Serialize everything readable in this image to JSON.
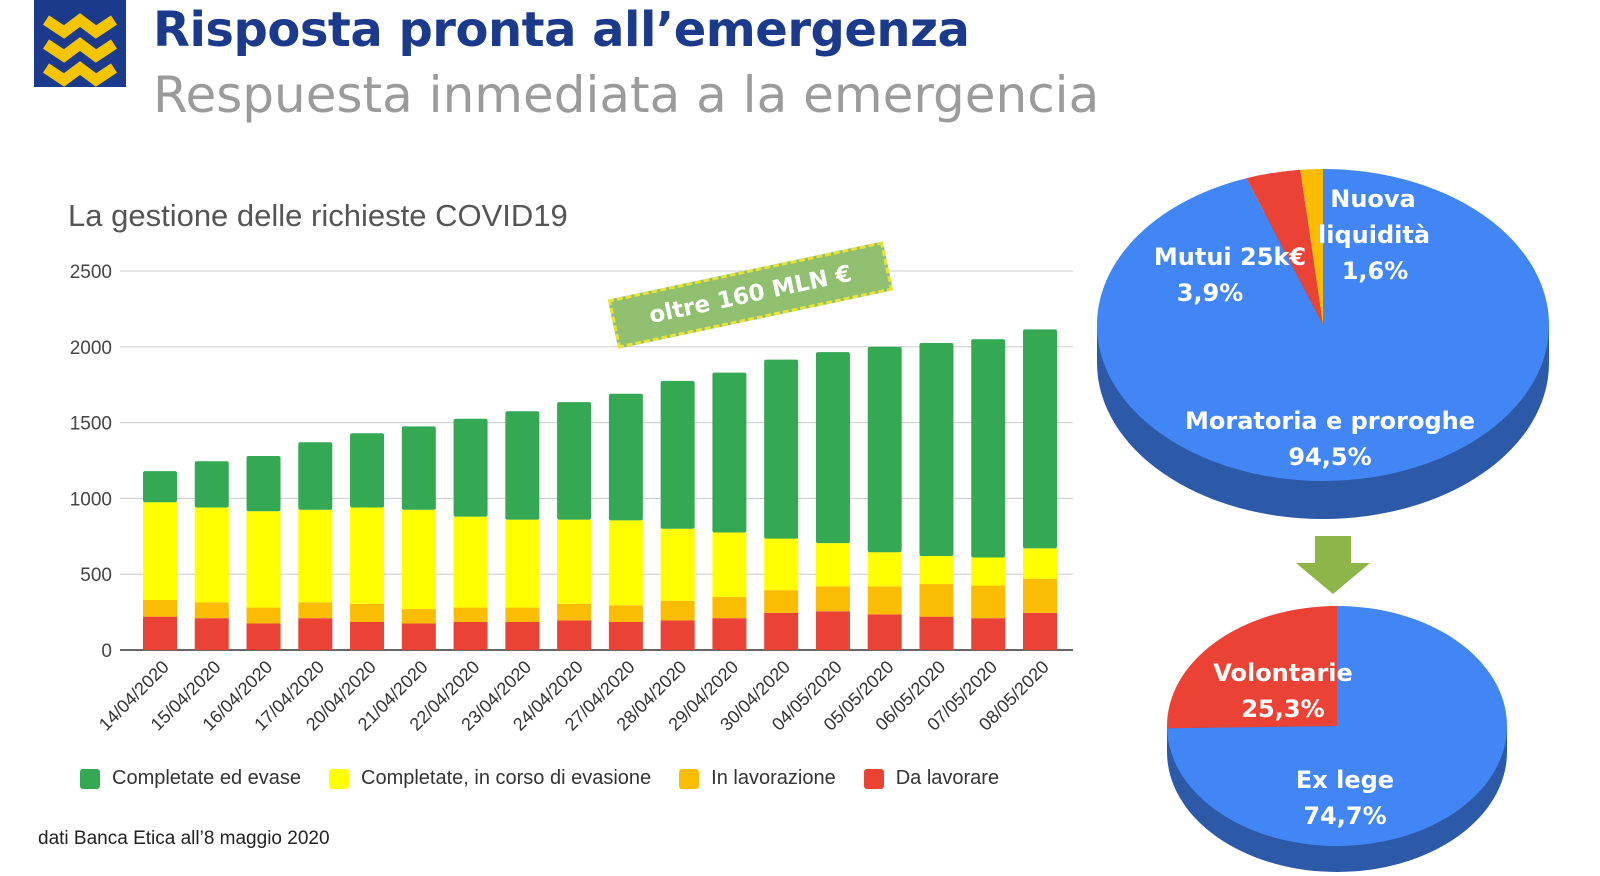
{
  "header": {
    "title": "Risposta pronta all’emergenza",
    "subtitle": "Respuesta inmediata a la emergencia"
  },
  "colors": {
    "brand_blue": "#1c3a8c",
    "logo_yellow": "#f2c500",
    "completed": "#34a853",
    "in_evasion": "#ffff00",
    "in_progress": "#fbbc04",
    "to_process": "#ea4335",
    "pie_blue": "#4285f4",
    "pie_blue_dark": "#2d5aa8"
  },
  "callout": {
    "text": "oltre 160 MLN €"
  },
  "footnote": "dati Banca Etica all’8 maggio 2020",
  "chart_data": [
    {
      "type": "bar",
      "stacked": true,
      "title": "La gestione delle richieste COVID19",
      "categories": [
        "14/04/2020",
        "15/04/2020",
        "16/04/2020",
        "17/04/2020",
        "20/04/2020",
        "21/04/2020",
        "22/04/2020",
        "23/04/2020",
        "24/04/2020",
        "27/04/2020",
        "28/04/2020",
        "29/04/2020",
        "30/04/2020",
        "04/05/2020",
        "05/05/2020",
        "06/05/2020",
        "07/05/2020",
        "08/05/2020"
      ],
      "series": [
        {
          "name": "Da lavorare",
          "color": "#ea4335",
          "values": [
            220,
            210,
            175,
            210,
            185,
            175,
            185,
            185,
            195,
            185,
            195,
            210,
            245,
            255,
            235,
            220,
            210,
            245
          ]
        },
        {
          "name": "In lavorazione",
          "color": "#fbbc04",
          "values": [
            110,
            105,
            105,
            105,
            120,
            95,
            95,
            95,
            110,
            110,
            130,
            140,
            150,
            165,
            185,
            215,
            215,
            225
          ]
        },
        {
          "name": "Completate, in corso di evasione",
          "color": "#ffff00",
          "values": [
            645,
            625,
            635,
            610,
            635,
            655,
            600,
            580,
            555,
            560,
            475,
            425,
            340,
            285,
            225,
            185,
            185,
            200
          ]
        },
        {
          "name": "Completate ed evase",
          "color": "#34a853",
          "values": [
            205,
            305,
            365,
            445,
            490,
            550,
            645,
            715,
            775,
            835,
            975,
            1055,
            1180,
            1260,
            1355,
            1405,
            1440,
            1445
          ]
        }
      ],
      "ylim": [
        0,
        2500
      ],
      "yticks": [
        0,
        500,
        1000,
        1500,
        2000,
        2500
      ],
      "grid": true,
      "legend": "bottom"
    },
    {
      "type": "pie",
      "slices": [
        {
          "label": "Moratoria e proroghe",
          "value": 94.5,
          "display": "94,5%",
          "color": "#4285f4"
        },
        {
          "label": "Mutui 25k€",
          "value": 3.9,
          "display": "3,9%",
          "color": "#ea4335"
        },
        {
          "label": "Nuova liquidità",
          "value": 1.6,
          "display": "1,6%",
          "color": "#fbbc04"
        }
      ]
    },
    {
      "type": "pie",
      "slices": [
        {
          "label": "Ex lege",
          "value": 74.7,
          "display": "74,7%",
          "color": "#4285f4"
        },
        {
          "label": "Volontarie",
          "value": 25.3,
          "display": "25,3%",
          "color": "#ea4335"
        }
      ]
    }
  ]
}
